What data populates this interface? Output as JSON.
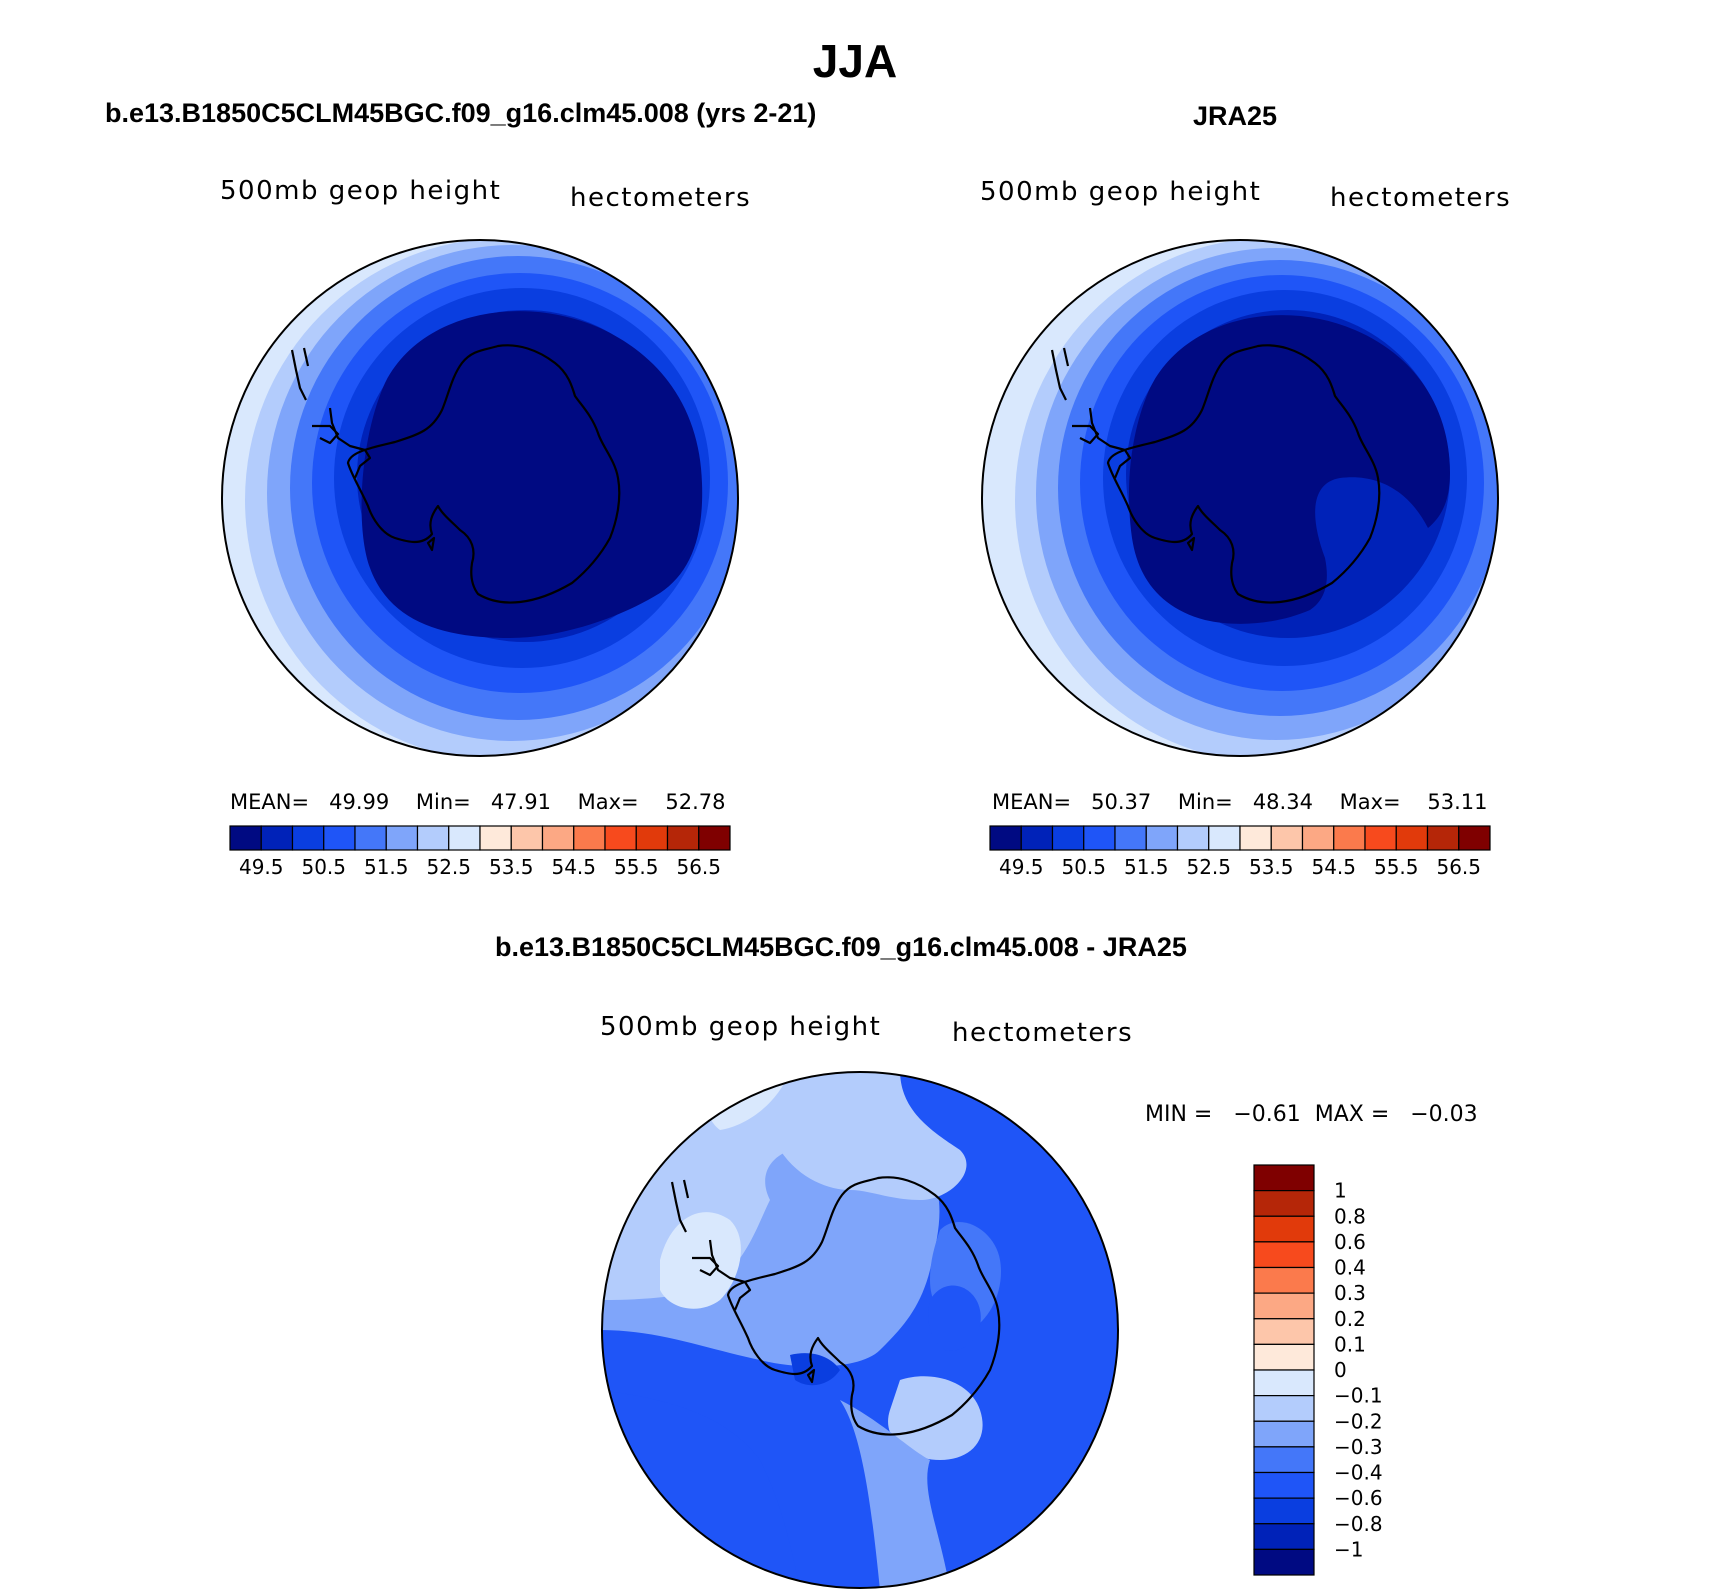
{
  "figure_title": "JJA",
  "panels": [
    {
      "title": "b.e13.B1850C5CLM45BGC.f09_g16.clm45.008 (yrs 2-21)",
      "left_label": "500mb geop height",
      "right_label": "hectometers",
      "stats": {
        "mean_label": "MEAN=",
        "mean": "49.99",
        "min_label": "Min=",
        "min": "47.91",
        "max_label": "Max=",
        "max": "52.78"
      }
    },
    {
      "title": "JRA25",
      "left_label": "500mb geop height",
      "right_label": "hectometers",
      "stats": {
        "mean_label": "MEAN=",
        "mean": "50.37",
        "min_label": "Min=",
        "min": "48.34",
        "max_label": "Max=",
        "max": "53.11"
      }
    },
    {
      "title": "b.e13.B1850C5CLM45BGC.f09_g16.clm45.008 - JRA25",
      "left_label": "500mb geop height",
      "right_label": "hectometers",
      "minmax": "MIN =   −0.61  MAX =   −0.03"
    }
  ],
  "colorbar_horizontal": {
    "colors": [
      "#000a82",
      "#0022b8",
      "#0a3ee0",
      "#1f55f7",
      "#4477f9",
      "#7fa5fa",
      "#b3ccfc",
      "#d9e8fd",
      "#fee9da",
      "#fdc6aa",
      "#fca884",
      "#fb7a4c",
      "#f74a1d",
      "#e13a0b",
      "#b52608",
      "#7f0000"
    ],
    "labels": [
      "49.5",
      "50.5",
      "51.5",
      "52.5",
      "53.5",
      "54.5",
      "55.5",
      "56.5"
    ]
  },
  "colorbar_vertical": {
    "colors": [
      "#7f0000",
      "#b52608",
      "#e13a0b",
      "#f74a1d",
      "#fb7a4c",
      "#fca884",
      "#fdc6aa",
      "#fee9da",
      "#d9e8fd",
      "#b3ccfc",
      "#7fa5fa",
      "#4477f9",
      "#1f55f7",
      "#0a3ee0",
      "#0022b8",
      "#000a82"
    ],
    "labels": [
      "1",
      "0.8",
      "0.6",
      "0.4",
      "0.3",
      "0.2",
      "0.1",
      "0",
      "−0.1",
      "−0.2",
      "−0.3",
      "−0.4",
      "−0.6",
      "−0.8",
      "−1"
    ]
  },
  "map_colors": {
    "c1": "#000a82",
    "c2": "#0022b8",
    "c3": "#0a3ee0",
    "c4": "#1f55f7",
    "c5": "#4477f9",
    "c6": "#7fa5fa",
    "c7": "#b3ccfc",
    "c8": "#d9e8fd"
  }
}
